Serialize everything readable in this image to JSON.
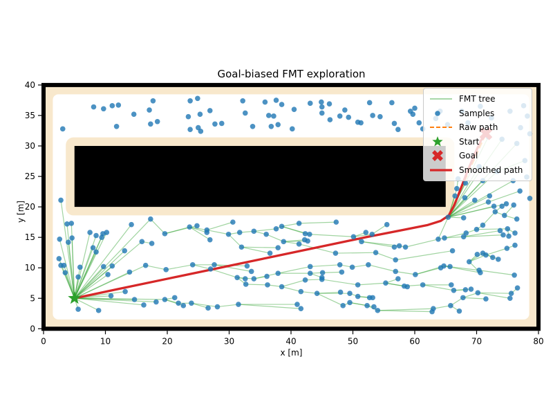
{
  "chart_data": {
    "type": "scatter",
    "title": "Goal-biased FMT exploration",
    "xlabel": "x [m]",
    "ylabel": "y [m]",
    "xlim": [
      0,
      80
    ],
    "ylim": [
      0,
      40
    ],
    "xticks": [
      0,
      10,
      20,
      30,
      40,
      50,
      60,
      70,
      80
    ],
    "yticks": [
      0,
      5,
      10,
      15,
      20,
      25,
      30,
      35,
      40
    ],
    "grid": false,
    "legend_position": "upper right",
    "legend": [
      {
        "label": "FMT tree",
        "type": "line",
        "color": "rgba(44,160,44,0.55)"
      },
      {
        "label": "Samples",
        "type": "dot",
        "color": "rgba(31,119,180,0.85)"
      },
      {
        "label": "Raw path",
        "type": "dashed",
        "color": "#ff7f0e"
      },
      {
        "label": "Start",
        "type": "star",
        "color": "#2ca02c"
      },
      {
        "label": "Goal",
        "type": "cross",
        "color": "#d62728"
      },
      {
        "label": "Smoothed path",
        "type": "thickline",
        "color": "#d62728"
      }
    ],
    "colors": {
      "sample": "rgba(31,119,180,0.8)",
      "tree_edge": "rgba(44,160,44,0.45)",
      "raw_path": "#ff7f0e",
      "smoothed_path": "#d62728",
      "start": "#2ca02c",
      "goal": "#d62728",
      "obstacle": "#000000",
      "inflated_zone": "#f8e8cc",
      "frame": "#000000"
    },
    "start": [
      5.0,
      5.0
    ],
    "goal": [
      71.5,
      32.0
    ],
    "obstacle_rect": {
      "x": 5,
      "y": 20,
      "w": 60,
      "h": 10
    },
    "inflation_margin": 1.5,
    "raw_path": [
      [
        5,
        5
      ],
      [
        34,
        11.2
      ],
      [
        63.2,
        17.3
      ],
      [
        65.4,
        18.3
      ],
      [
        71.5,
        32
      ]
    ],
    "smoothed_path": [
      [
        5,
        5
      ],
      [
        12,
        6.5
      ],
      [
        20,
        8.2
      ],
      [
        28,
        9.9
      ],
      [
        36,
        11.6
      ],
      [
        44,
        13.3
      ],
      [
        52,
        15.0
      ],
      [
        58,
        16.2
      ],
      [
        62,
        17.0
      ],
      [
        64.2,
        17.7
      ],
      [
        65.5,
        18.6
      ],
      [
        66.4,
        20.3
      ],
      [
        67.4,
        22.9
      ],
      [
        68.5,
        25.8
      ],
      [
        69.8,
        28.9
      ],
      [
        70.7,
        30.9
      ],
      [
        71.5,
        32
      ]
    ],
    "nodes": [
      [
        5.0,
        5.0,
        -1
      ],
      [
        2.5,
        11.5,
        0
      ],
      [
        2.8,
        10.4,
        0
      ],
      [
        3.3,
        10.4,
        0
      ],
      [
        2.6,
        14.7,
        0
      ],
      [
        3.8,
        17.2,
        0
      ],
      [
        4.5,
        17.3,
        0
      ],
      [
        4.6,
        14.9,
        0
      ],
      [
        4.0,
        14.2,
        0
      ],
      [
        3.5,
        9.2,
        0
      ],
      [
        5.6,
        8.5,
        0
      ],
      [
        5.9,
        10.1,
        0
      ],
      [
        5.6,
        3.2,
        0
      ],
      [
        8.9,
        3.0,
        0
      ],
      [
        7.5,
        15.8,
        0
      ],
      [
        8.0,
        13.3,
        0
      ],
      [
        8.5,
        12.6,
        0
      ],
      [
        8.5,
        15.3,
        0
      ],
      [
        9.4,
        15.0,
        0
      ],
      [
        9.6,
        15.6,
        0
      ],
      [
        10.2,
        15.8,
        0
      ],
      [
        9.7,
        10.2,
        0
      ],
      [
        10.4,
        8.9,
        0
      ],
      [
        11.1,
        10.3,
        0
      ],
      [
        10.9,
        5.4,
        0
      ],
      [
        13.2,
        6.1,
        0
      ],
      [
        13.9,
        9.3,
        0
      ],
      [
        13.1,
        12.8,
        0
      ],
      [
        14.2,
        17.1,
        0
      ],
      [
        15.9,
        14.3,
        0
      ],
      [
        16.5,
        10.4,
        0
      ],
      [
        17.3,
        18.0,
        0
      ],
      [
        2.8,
        21.1,
        0
      ],
      [
        14.7,
        4.8,
        0
      ],
      [
        16.2,
        3.9,
        0
      ],
      [
        18.2,
        4.4,
        0
      ],
      [
        19.6,
        4.8,
        0
      ],
      [
        21.2,
        5.1,
        36
      ],
      [
        21.8,
        4.2,
        36
      ],
      [
        22.6,
        3.8,
        36
      ],
      [
        23.9,
        4.2,
        38
      ],
      [
        26.6,
        3.4,
        40
      ],
      [
        28.1,
        3.6,
        40
      ],
      [
        31.5,
        4.0,
        42
      ],
      [
        17.5,
        14.0,
        29
      ],
      [
        19.6,
        15.6,
        31
      ],
      [
        23.6,
        16.7,
        45
      ],
      [
        24.8,
        16.9,
        45
      ],
      [
        26.4,
        16.2,
        46
      ],
      [
        26.4,
        15.8,
        46
      ],
      [
        26.9,
        14.6,
        46
      ],
      [
        29.9,
        15.5,
        48
      ],
      [
        30.6,
        17.5,
        48
      ],
      [
        31.7,
        15.8,
        51
      ],
      [
        32.0,
        13.4,
        51
      ],
      [
        34.0,
        16.0,
        53
      ],
      [
        36.0,
        15.5,
        55
      ],
      [
        37.6,
        16.4,
        55
      ],
      [
        38.5,
        16.8,
        57
      ],
      [
        38.8,
        14.3,
        56
      ],
      [
        36.6,
        12.4,
        54
      ],
      [
        37.9,
        13.3,
        54
      ],
      [
        19.8,
        9.7,
        30
      ],
      [
        24.1,
        10.5,
        62
      ],
      [
        27.0,
        9.8,
        63
      ],
      [
        27.6,
        10.5,
        63
      ],
      [
        32.9,
        10.3,
        65
      ],
      [
        33.6,
        9.4,
        65
      ],
      [
        31.3,
        8.4,
        64
      ],
      [
        32.6,
        8.2,
        68
      ],
      [
        34.0,
        8.2,
        68
      ],
      [
        36.1,
        8.6,
        70
      ],
      [
        37.9,
        9.1,
        70
      ],
      [
        32.7,
        7.3,
        68
      ],
      [
        36.2,
        7.2,
        73
      ],
      [
        38.5,
        6.9,
        74
      ],
      [
        43.1,
        10.2,
        72
      ],
      [
        43.1,
        9.1,
        72
      ],
      [
        45.1,
        9.2,
        77
      ],
      [
        45.0,
        8.4,
        77
      ],
      [
        48.2,
        9.3,
        78
      ],
      [
        47.9,
        10.5,
        76
      ],
      [
        49.9,
        10.1,
        81
      ],
      [
        52.5,
        10.5,
        82
      ],
      [
        42.3,
        8.0,
        75
      ],
      [
        45.0,
        8.1,
        84
      ],
      [
        50.8,
        7.2,
        85
      ],
      [
        55.3,
        7.5,
        86
      ],
      [
        57.3,
        8.2,
        87
      ],
      [
        58.3,
        7.0,
        87
      ],
      [
        58.8,
        6.9,
        87
      ],
      [
        61.3,
        7.2,
        89
      ],
      [
        56.9,
        9.4,
        83
      ],
      [
        60.1,
        8.9,
        92
      ],
      [
        64.7,
        10.3,
        93
      ],
      [
        65.9,
        7.2,
        91
      ],
      [
        66.3,
        6.3,
        91
      ],
      [
        41.6,
        6.1,
        75
      ],
      [
        44.2,
        5.8,
        97
      ],
      [
        48.0,
        6.0,
        98
      ],
      [
        49.5,
        5.8,
        98
      ],
      [
        50.8,
        5.3,
        100
      ],
      [
        52.7,
        5.1,
        101
      ],
      [
        53.2,
        5.1,
        101
      ],
      [
        41.0,
        4.0,
        43
      ],
      [
        41.6,
        3.3,
        43
      ],
      [
        48.4,
        3.8,
        98
      ],
      [
        49.5,
        4.3,
        106
      ],
      [
        52.3,
        3.8,
        107
      ],
      [
        53.4,
        3.6,
        107
      ],
      [
        54.0,
        3.0,
        108
      ],
      [
        62.8,
        2.8,
        110
      ],
      [
        63.0,
        3.3,
        110
      ],
      [
        65.8,
        3.8,
        112
      ],
      [
        67.2,
        2.9,
        113
      ],
      [
        67.8,
        5.1,
        113
      ],
      [
        68.2,
        6.4,
        96
      ],
      [
        69.1,
        6.5,
        96
      ],
      [
        70.2,
        5.9,
        115
      ],
      [
        71.5,
        4.9,
        115
      ],
      [
        75.6,
        5.8,
        118
      ],
      [
        75.4,
        5.0,
        118
      ],
      [
        70.4,
        9.6,
        94
      ],
      [
        70.6,
        9.2,
        94
      ],
      [
        76.1,
        8.8,
        122
      ],
      [
        64.2,
        10.0,
        93
      ],
      [
        65.7,
        10.2,
        94
      ],
      [
        68.8,
        11.0,
        123
      ],
      [
        70.1,
        12.2,
        127
      ],
      [
        71.0,
        12.4,
        127
      ],
      [
        71.5,
        12.1,
        127
      ],
      [
        73.5,
        11.4,
        129
      ],
      [
        74.9,
        13.2,
        130
      ],
      [
        76.2,
        13.7,
        132
      ],
      [
        41.3,
        13.9,
        59
      ],
      [
        42.2,
        14.6,
        59
      ],
      [
        42.7,
        14.4,
        59
      ],
      [
        42.3,
        15.6,
        58
      ],
      [
        43.0,
        15.5,
        58
      ],
      [
        41.3,
        17.3,
        58
      ],
      [
        47.3,
        17.5,
        139
      ],
      [
        47.2,
        12.4,
        134
      ],
      [
        50.1,
        15.1,
        138
      ],
      [
        52.1,
        15.8,
        142
      ],
      [
        53.1,
        15.5,
        142
      ],
      [
        51.4,
        14.3,
        142
      ],
      [
        53.7,
        12.5,
        141
      ],
      [
        55.5,
        17.1,
        144
      ],
      [
        56.7,
        13.4,
        145
      ],
      [
        57.5,
        13.6,
        145
      ],
      [
        58.5,
        13.4,
        149
      ],
      [
        56.9,
        11.3,
        146
      ],
      [
        63.8,
        14.7,
        150
      ],
      [
        64.8,
        14.9,
        152
      ],
      [
        66.1,
        12.8,
        151
      ],
      [
        65.4,
        18.3,
        152
      ],
      [
        67.9,
        18.2,
        155
      ],
      [
        68.3,
        15.7,
        153
      ],
      [
        67.9,
        15.1,
        153
      ],
      [
        70.0,
        16.3,
        157
      ],
      [
        71.0,
        17.0,
        159
      ],
      [
        73.0,
        19.2,
        160
      ],
      [
        74.1,
        20.1,
        161
      ],
      [
        74.5,
        18.6,
        161
      ],
      [
        75.0,
        16.4,
        159
      ],
      [
        75.2,
        15.2,
        164
      ],
      [
        76.2,
        15.7,
        164
      ],
      [
        76.5,
        18.0,
        163
      ],
      [
        66.5,
        21.8,
        155
      ],
      [
        66.8,
        23.0,
        155
      ],
      [
        68.1,
        21.5,
        155
      ],
      [
        68.2,
        23.9,
        155
      ],
      [
        69.7,
        21.1,
        155
      ],
      [
        71.9,
        20.8,
        155
      ],
      [
        71.0,
        24.3,
        155
      ],
      [
        70.4,
        26.6,
        155
      ],
      [
        73.3,
        25.8,
        155
      ],
      [
        75.9,
        24.3,
        155
      ],
      [
        74.1,
        31.1,
        155
      ],
      [
        71.9,
        31.5,
        155
      ],
      [
        76.5,
        30.4,
        155
      ],
      [
        74.8,
        20.5,
        155
      ],
      [
        72.1,
        21.8,
        155
      ],
      [
        77.0,
        22.6,
        173
      ],
      [
        77.8,
        27.6,
        176
      ],
      [
        67.0,
        24.6,
        169
      ],
      [
        73.8,
        16.1,
        158
      ],
      [
        74.3,
        15.4,
        158
      ],
      [
        72.6,
        11.7,
        129
      ],
      [
        76.6,
        6.7,
        120
      ],
      [
        72.8,
        20.1,
        155
      ],
      [
        76.0,
        20.3,
        163
      ],
      [
        3.1,
        32.8,
        -1
      ],
      [
        8.1,
        36.4,
        -1
      ],
      [
        9.7,
        36.1,
        -1
      ],
      [
        11.1,
        36.6,
        -1
      ],
      [
        12.1,
        36.7,
        -1
      ],
      [
        11.8,
        33.2,
        -1
      ],
      [
        14.6,
        35.2,
        -1
      ],
      [
        17.1,
        35.9,
        -1
      ],
      [
        17.3,
        33.6,
        -1
      ],
      [
        18.4,
        34.0,
        -1
      ],
      [
        17.7,
        37.4,
        -1
      ],
      [
        23.7,
        37.4,
        -1
      ],
      [
        24.9,
        37.8,
        -1
      ],
      [
        23.4,
        34.8,
        -1
      ],
      [
        25.3,
        35.2,
        -1
      ],
      [
        23.7,
        32.7,
        -1
      ],
      [
        25.0,
        33.0,
        -1
      ],
      [
        25.4,
        32.4,
        -1
      ],
      [
        26.9,
        35.8,
        -1
      ],
      [
        27.7,
        33.6,
        -1
      ],
      [
        28.8,
        33.7,
        -1
      ],
      [
        32.2,
        37.4,
        -1
      ],
      [
        32.6,
        35.4,
        -1
      ],
      [
        33.8,
        33.2,
        -1
      ],
      [
        35.8,
        37.2,
        -1
      ],
      [
        36.4,
        35.0,
        -1
      ],
      [
        37.2,
        34.9,
        -1
      ],
      [
        37.6,
        37.5,
        -1
      ],
      [
        38.5,
        36.8,
        -1
      ],
      [
        36.8,
        33.2,
        -1
      ],
      [
        37.9,
        33.5,
        -1
      ],
      [
        40.5,
        36.0,
        -1
      ],
      [
        40.2,
        32.8,
        -1
      ],
      [
        43.1,
        37.0,
        -1
      ],
      [
        44.9,
        37.2,
        -1
      ],
      [
        45.0,
        36.4,
        -1
      ],
      [
        45.0,
        35.4,
        -1
      ],
      [
        46.2,
        36.9,
        -1
      ],
      [
        46.3,
        34.3,
        -1
      ],
      [
        47.9,
        34.9,
        -1
      ],
      [
        48.7,
        35.9,
        -1
      ],
      [
        49.3,
        34.7,
        -1
      ],
      [
        50.8,
        33.9,
        -1
      ],
      [
        51.3,
        33.8,
        -1
      ],
      [
        52.7,
        37.1,
        -1
      ],
      [
        53.2,
        35.0,
        -1
      ],
      [
        54.4,
        34.8,
        -1
      ],
      [
        56.3,
        37.1,
        -1
      ],
      [
        56.7,
        33.7,
        -1
      ],
      [
        57.3,
        32.7,
        -1
      ],
      [
        59.7,
        35.2,
        -1
      ],
      [
        60.0,
        36.2,
        -1
      ],
      [
        60.7,
        33.8,
        -1
      ],
      [
        61.3,
        32.8,
        -1
      ],
      [
        59.3,
        35.7,
        -1
      ],
      [
        63.4,
        34.5,
        -1
      ],
      [
        64.1,
        35.7,
        -1
      ],
      [
        65.3,
        33.5,
        -1
      ],
      [
        67.6,
        35.7,
        -1
      ],
      [
        68.6,
        33.8,
        -1
      ],
      [
        70.6,
        36.5,
        -1
      ],
      [
        72.4,
        34.6,
        -1
      ],
      [
        75.4,
        35.7,
        -1
      ],
      [
        77.6,
        36.6,
        -1
      ],
      [
        78.2,
        34.9,
        -1
      ],
      [
        77.1,
        33.0,
        -1
      ],
      [
        78.6,
        32.0,
        -1
      ],
      [
        78.1,
        24.9,
        -1
      ],
      [
        78.6,
        21.4,
        -1
      ]
    ]
  }
}
